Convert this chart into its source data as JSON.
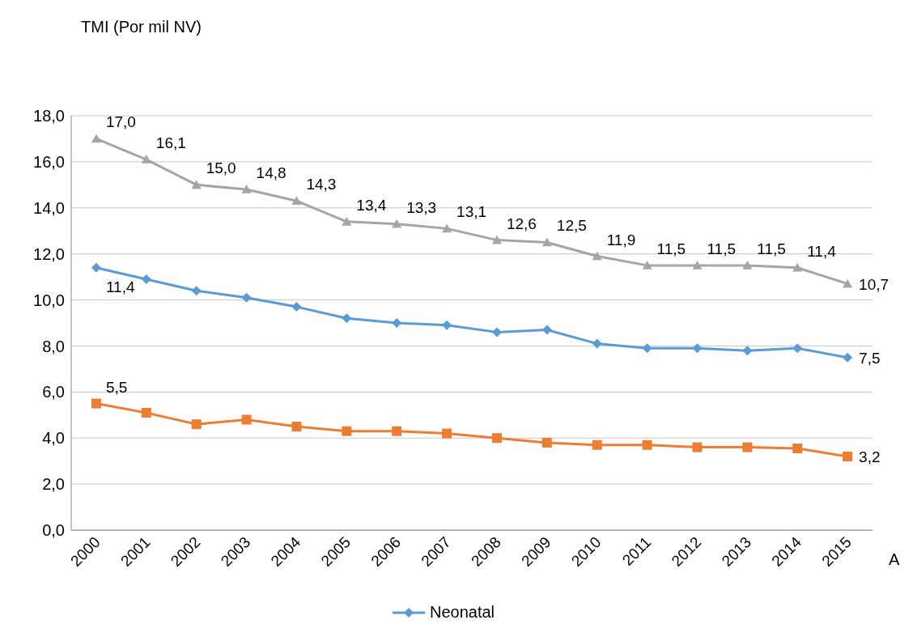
{
  "chart_data": {
    "type": "line",
    "ylabel": "TMI (Por mil NV)",
    "xlabel": "A",
    "categories": [
      "2000",
      "2001",
      "2002",
      "2003",
      "2004",
      "2005",
      "2006",
      "2007",
      "2008",
      "2009",
      "2010",
      "2011",
      "2012",
      "2013",
      "2014",
      "2015"
    ],
    "series": [
      {
        "color": "#a5a5a5",
        "marker": "triangle",
        "values": [
          17.0,
          16.1,
          15.0,
          14.8,
          14.3,
          13.4,
          13.3,
          13.1,
          12.6,
          12.5,
          11.9,
          11.5,
          11.5,
          11.5,
          11.4,
          10.7
        ],
        "value_labels": [
          "17,0",
          "16,1",
          "15,0",
          "14,8",
          "14,3",
          "13,4",
          "13,3",
          "13,1",
          "12,6",
          "12,5",
          "11,9",
          "11,5",
          "11,5",
          "11,5",
          "11,4",
          "10,7"
        ]
      },
      {
        "name": "Neonatal",
        "color": "#5b9bd5",
        "marker": "diamond",
        "values": [
          11.4,
          10.9,
          10.4,
          10.1,
          9.7,
          9.2,
          9.0,
          8.9,
          8.6,
          8.7,
          8.1,
          7.9,
          7.9,
          7.8,
          7.9,
          7.5
        ],
        "value_labels": [
          "11,4",
          null,
          null,
          null,
          null,
          null,
          null,
          null,
          null,
          null,
          null,
          null,
          null,
          null,
          null,
          "7,5"
        ]
      },
      {
        "color": "#ed7d31",
        "marker": "square",
        "values": [
          5.5,
          5.1,
          4.6,
          4.8,
          4.5,
          4.3,
          4.3,
          4.2,
          4.0,
          3.8,
          3.7,
          3.7,
          3.6,
          3.6,
          3.55,
          3.2
        ],
        "value_labels": [
          "5,5",
          null,
          null,
          null,
          null,
          null,
          null,
          null,
          null,
          null,
          null,
          null,
          null,
          null,
          null,
          "3,2"
        ]
      }
    ],
    "ylim": [
      0,
      18
    ],
    "yticks": [
      {
        "value": 0,
        "label": "0,0"
      },
      {
        "value": 2,
        "label": "2,0"
      },
      {
        "value": 4,
        "label": "4,0"
      },
      {
        "value": 6,
        "label": "6,0"
      },
      {
        "value": 8,
        "label": "8,0"
      },
      {
        "value": 10,
        "label": "10,0"
      },
      {
        "value": 12,
        "label": "12,0"
      },
      {
        "value": 14,
        "label": "14,0"
      },
      {
        "value": 16,
        "label": "16,0"
      },
      {
        "value": 18,
        "label": "18,0"
      }
    ],
    "grid": "y",
    "legend": "bottom"
  }
}
